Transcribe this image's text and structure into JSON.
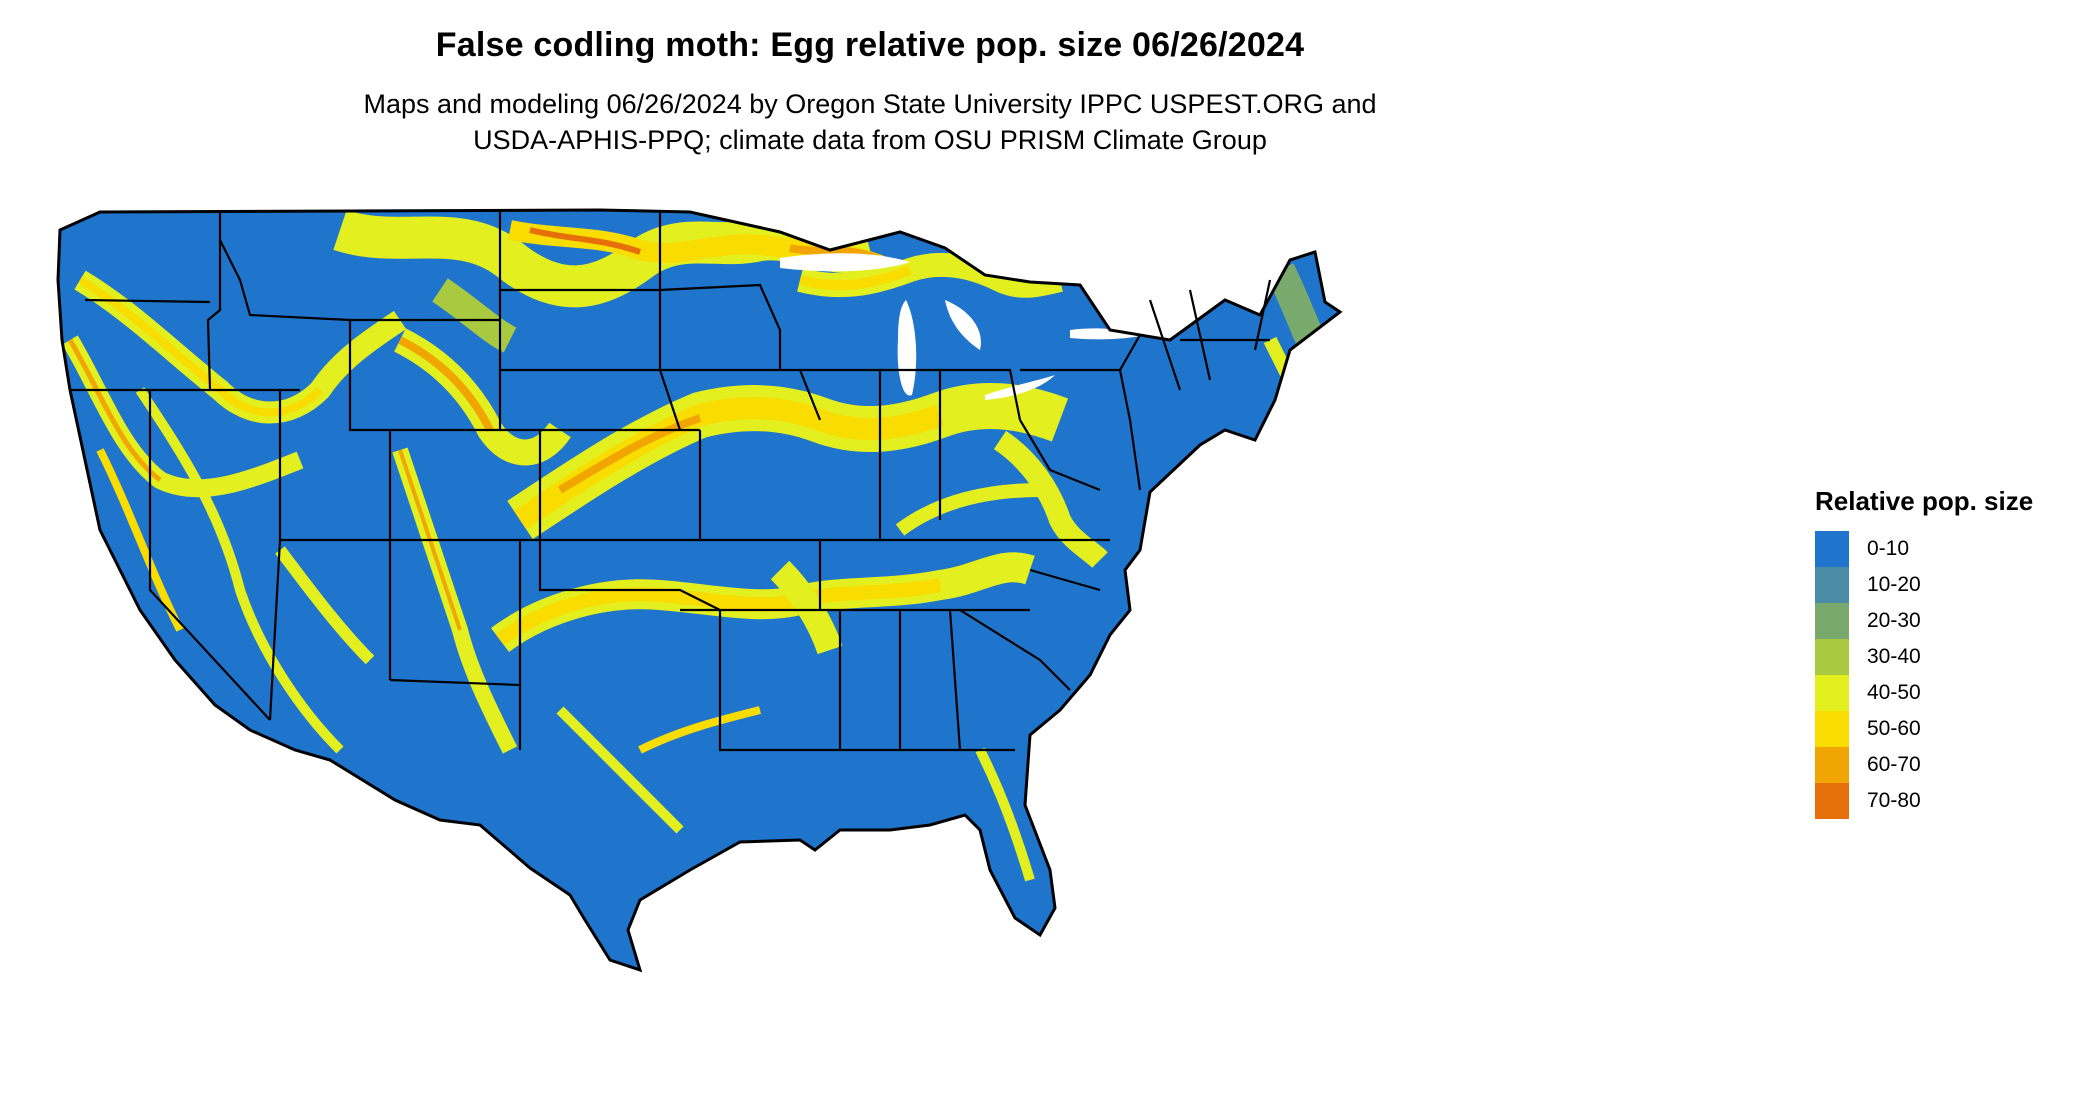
{
  "title": "False codling moth: Egg relative pop. size 06/26/2024",
  "subtitle_lines": [
    "Maps and modeling 06/26/2024 by Oregon State University IPPC USPEST.ORG and",
    "USDA-APHIS-PPQ; climate data from OSU PRISM Climate Group"
  ],
  "legend": {
    "title": "Relative pop. size",
    "items": [
      {
        "label": "0-10",
        "color": "#1f74cc"
      },
      {
        "label": "10-20",
        "color": "#4a8ca8"
      },
      {
        "label": "20-30",
        "color": "#7aa96e"
      },
      {
        "label": "30-40",
        "color": "#a9c940"
      },
      {
        "label": "40-50",
        "color": "#e3ef1e"
      },
      {
        "label": "50-60",
        "color": "#f9dc00"
      },
      {
        "label": "60-70",
        "color": "#f1a500"
      },
      {
        "label": "70-80",
        "color": "#e5700a"
      }
    ]
  },
  "colors": {
    "background": "#1f74cc",
    "band_outer": "#e3ef1e",
    "band_mid": "#f9dc00",
    "band_hot": "#f1a500",
    "band_max": "#e5700a",
    "border": "#000000"
  }
}
